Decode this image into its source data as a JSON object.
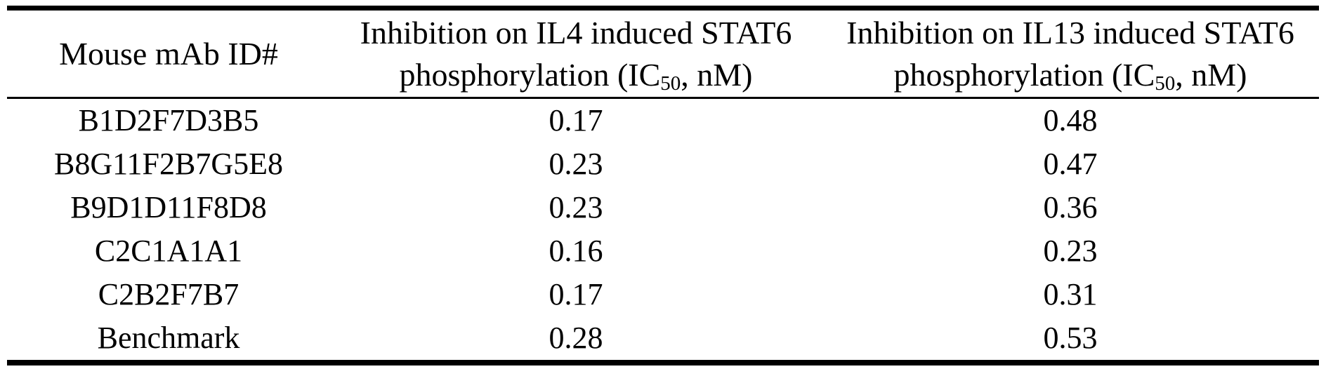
{
  "page": {
    "background_color": "#ffffff",
    "text_color": "#000000"
  },
  "table": {
    "col1_header": "Mouse mAb ID#",
    "col2_header": {
      "line1": "Inhibition on IL4 induced STAT6",
      "line2_pre": "phosphorylation (IC",
      "line2_sub": "50",
      "line2_post": ", nM)"
    },
    "col3_header": {
      "line1": "Inhibition on IL13 induced STAT6",
      "line2_pre": "phosphorylation (IC",
      "line2_sub": "50",
      "line2_post": ", nM)"
    },
    "rows": [
      {
        "id": "B1D2F7D3B5",
        "il4_ic50": "0.17",
        "il13_ic50": "0.48"
      },
      {
        "id": "B8G11F2B7G5E8",
        "il4_ic50": "0.23",
        "il13_ic50": "0.47"
      },
      {
        "id": "B9D1D11F8D8",
        "il4_ic50": "0.23",
        "il13_ic50": "0.36"
      },
      {
        "id": "C2C1A1A1",
        "il4_ic50": "0.16",
        "il13_ic50": "0.23"
      },
      {
        "id": "C2B2F7B7",
        "il4_ic50": "0.17",
        "il13_ic50": "0.31"
      },
      {
        "id": "Benchmark",
        "il4_ic50": "0.28",
        "il13_ic50": "0.53"
      }
    ]
  }
}
